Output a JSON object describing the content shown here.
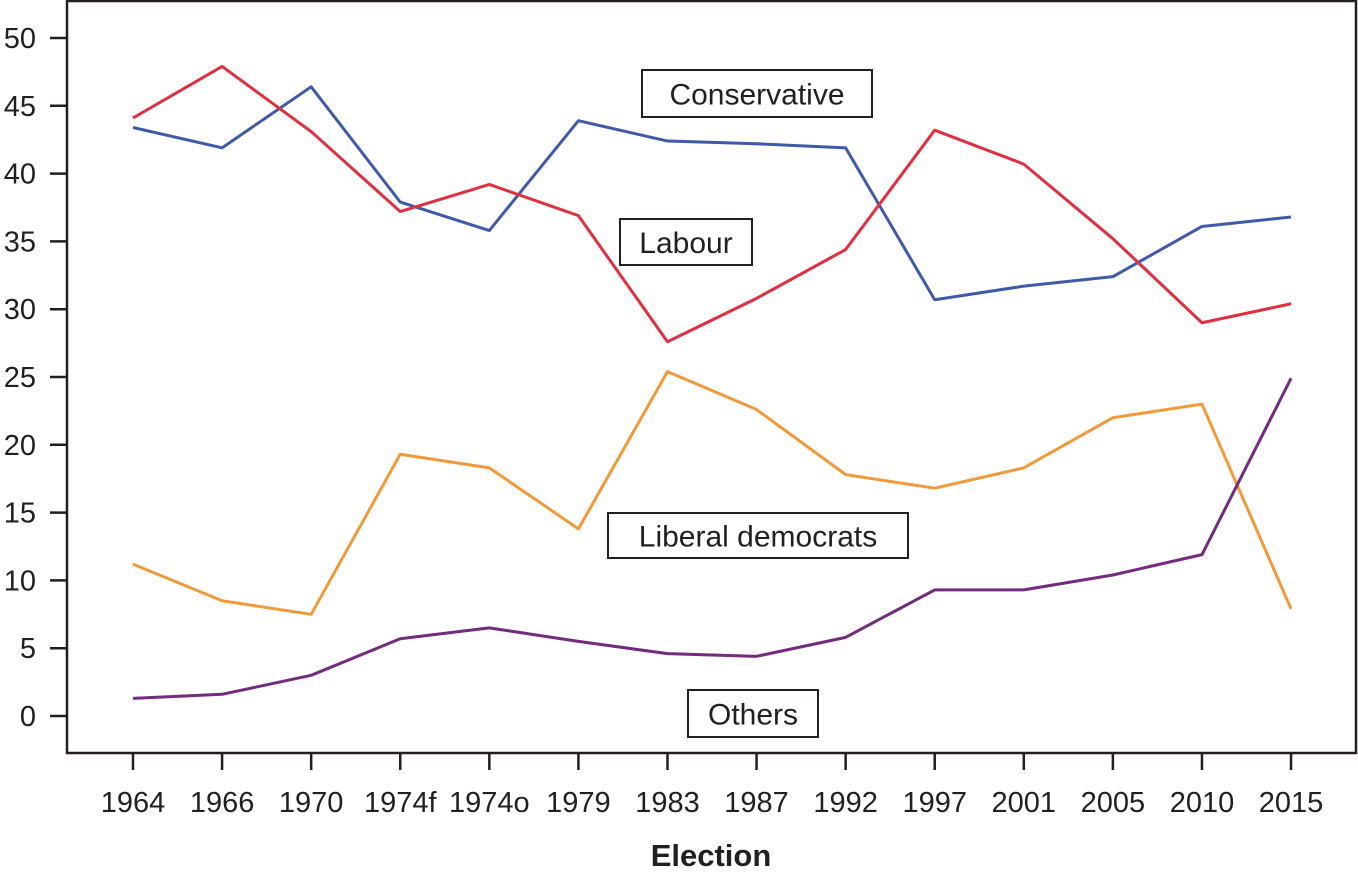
{
  "chart_data": {
    "type": "line",
    "title": "",
    "xlabel": "Election",
    "ylabel": "",
    "ylim": [
      -2.7,
      52.7
    ],
    "yticks": [
      0,
      5,
      10,
      15,
      20,
      25,
      30,
      35,
      40,
      45,
      50
    ],
    "grid": false,
    "categories": [
      "1964",
      "1966",
      "1970",
      "1974f",
      "1974o",
      "1979",
      "1983",
      "1987",
      "1992",
      "1997",
      "2001",
      "2005",
      "2010",
      "2015"
    ],
    "series": [
      {
        "name": "Conservative",
        "color": "#3f5aa8",
        "values": [
          43.4,
          41.9,
          46.4,
          37.9,
          35.8,
          43.9,
          42.4,
          42.2,
          41.9,
          30.7,
          31.7,
          32.4,
          36.1,
          36.8
        ]
      },
      {
        "name": "Labour",
        "color": "#e0303f",
        "values": [
          44.1,
          47.9,
          43.1,
          37.2,
          39.2,
          36.9,
          27.6,
          30.8,
          34.4,
          43.2,
          40.7,
          35.2,
          29.0,
          30.4
        ]
      },
      {
        "name": "Liberal democrats",
        "color": "#f29a3a",
        "values": [
          11.2,
          8.5,
          7.5,
          19.3,
          18.3,
          13.8,
          25.4,
          22.6,
          17.8,
          16.8,
          18.3,
          22.0,
          23.0,
          7.9
        ]
      },
      {
        "name": "Others",
        "color": "#742a7f",
        "values": [
          1.3,
          1.6,
          3.0,
          5.7,
          6.5,
          5.5,
          4.6,
          4.4,
          5.8,
          9.3,
          9.3,
          10.4,
          11.9,
          24.9
        ]
      }
    ]
  }
}
